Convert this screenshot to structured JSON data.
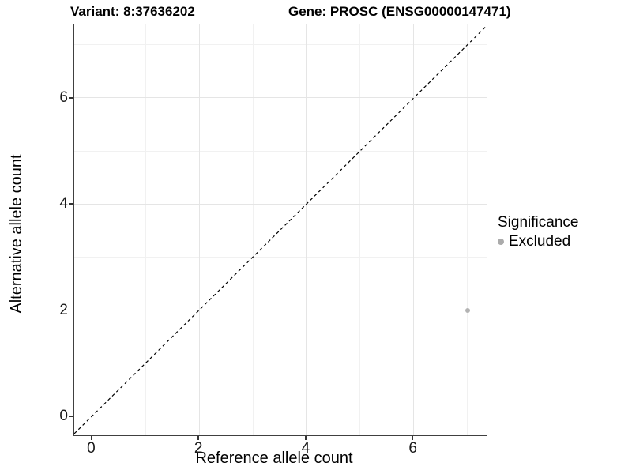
{
  "titles": {
    "variant": "Variant: 8:37636202",
    "gene": "Gene: PROSC (ENSG00000147471)"
  },
  "chart_data": {
    "type": "scatter",
    "title_left": "Variant: 8:37636202",
    "title_right": "Gene: PROSC (ENSG00000147471)",
    "xlabel": "Reference allele count",
    "ylabel": "Alternative allele count",
    "xlim": [
      -0.33,
      7.36
    ],
    "ylim": [
      -0.36,
      7.4
    ],
    "x_major_ticks": [
      0,
      2,
      4,
      6
    ],
    "x_minor_gridlines": [
      1,
      3,
      5,
      7
    ],
    "y_major_ticks": [
      0,
      2,
      4,
      6
    ],
    "y_minor_gridlines": [
      1,
      3,
      5,
      7
    ],
    "grid": "major and minor, light gray on white",
    "reference_line": {
      "type": "identity y=x",
      "style": "dashed",
      "color": "#000000",
      "from": -0.33,
      "to": 7.36
    },
    "series": [
      {
        "name": "Excluded",
        "color": "#b3b3b3",
        "points": [
          {
            "x": 7,
            "y": 2
          }
        ]
      }
    ],
    "legend": {
      "title": "Significance",
      "position": "right",
      "items": [
        {
          "label": "Excluded",
          "color": "#ababab"
        }
      ]
    }
  },
  "style": {
    "axis_line_color": "#404040",
    "major_grid_color": "#e5e5e5",
    "minor_grid_color": "#f1f1f1",
    "point_color": "#b3b3b3"
  }
}
